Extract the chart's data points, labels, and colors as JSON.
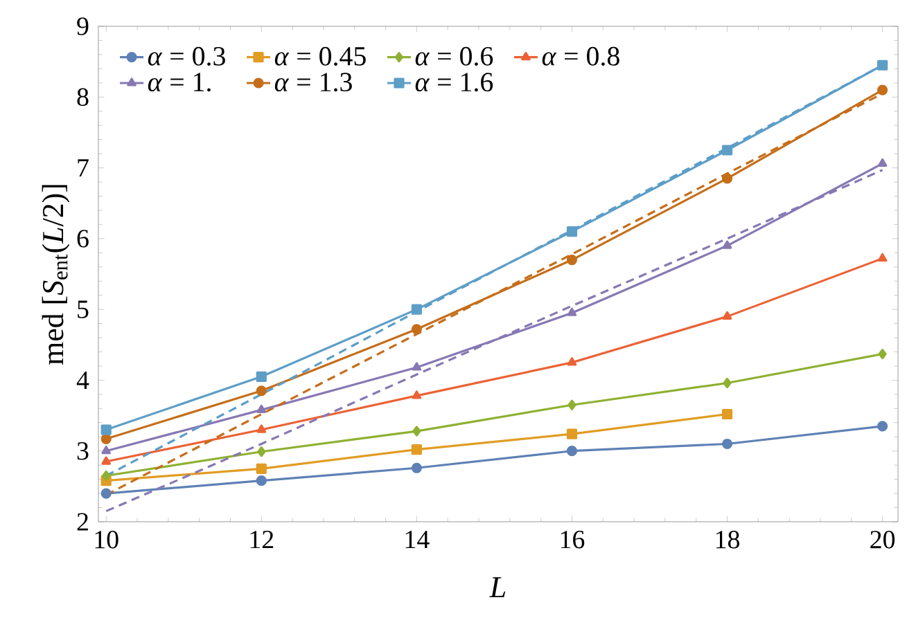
{
  "chart_data": {
    "type": "line",
    "xlabel": "L",
    "ylabel": "med [*S*$_{ent}$(*L*/2)]",
    "x": [
      10,
      12,
      14,
      16,
      18,
      20
    ],
    "series": [
      {
        "name": "*α* = 0.3",
        "color": "#5e81b5",
        "marker": "circle",
        "values": [
          2.4,
          2.58,
          2.76,
          3.0,
          3.1,
          3.35
        ]
      },
      {
        "name": "*α* = 0.45",
        "color": "#e19c24",
        "marker": "square",
        "values": [
          2.58,
          2.75,
          3.02,
          3.24,
          3.52,
          null
        ]
      },
      {
        "name": "*α* = 0.6",
        "color": "#8fb032",
        "marker": "diamond",
        "values": [
          2.65,
          2.99,
          3.28,
          3.65,
          3.96,
          4.37
        ]
      },
      {
        "name": "*α* = 0.8",
        "color": "#eb6235",
        "marker": "triangle",
        "values": [
          2.85,
          3.3,
          3.78,
          4.25,
          4.9,
          5.72
        ]
      },
      {
        "name": "*α* = 1.",
        "color": "#8778b3",
        "marker": "triangle",
        "values": [
          3.0,
          3.58,
          4.18,
          4.95,
          5.9,
          7.06
        ]
      },
      {
        "name": "*α* = 1.3",
        "color": "#c56e1a",
        "marker": "circle",
        "values": [
          3.17,
          3.85,
          4.72,
          5.7,
          6.85,
          8.1
        ]
      },
      {
        "name": "*α* = 1.6",
        "color": "#5d9ec7",
        "marker": "square",
        "values": [
          3.3,
          4.05,
          5.0,
          6.1,
          7.25,
          8.45
        ]
      },
      {
        "color": "#8778b3",
        "values": [
          2.15,
          3.1,
          4.08,
          5.05,
          6.0,
          6.97
        ],
        "line_style": "dashed",
        "marker": "none"
      },
      {
        "color": "#c56e1a",
        "values": [
          2.38,
          3.52,
          4.65,
          5.78,
          6.92,
          8.05
        ],
        "line_style": "dashed",
        "marker": "none"
      },
      {
        "color": "#5d9ec7",
        "values": [
          2.65,
          3.8,
          4.97,
          6.12,
          7.28,
          8.45
        ],
        "line_style": "dashed",
        "marker": "none"
      }
    ],
    "xlim": [
      9.9,
      20.2
    ],
    "ylim": [
      2,
      9
    ],
    "xticks": [
      10,
      12,
      14,
      16,
      18,
      20
    ],
    "yticks": [
      2,
      3,
      4,
      5,
      6,
      7,
      8,
      9
    ],
    "grid": false,
    "legend": "top left"
  }
}
